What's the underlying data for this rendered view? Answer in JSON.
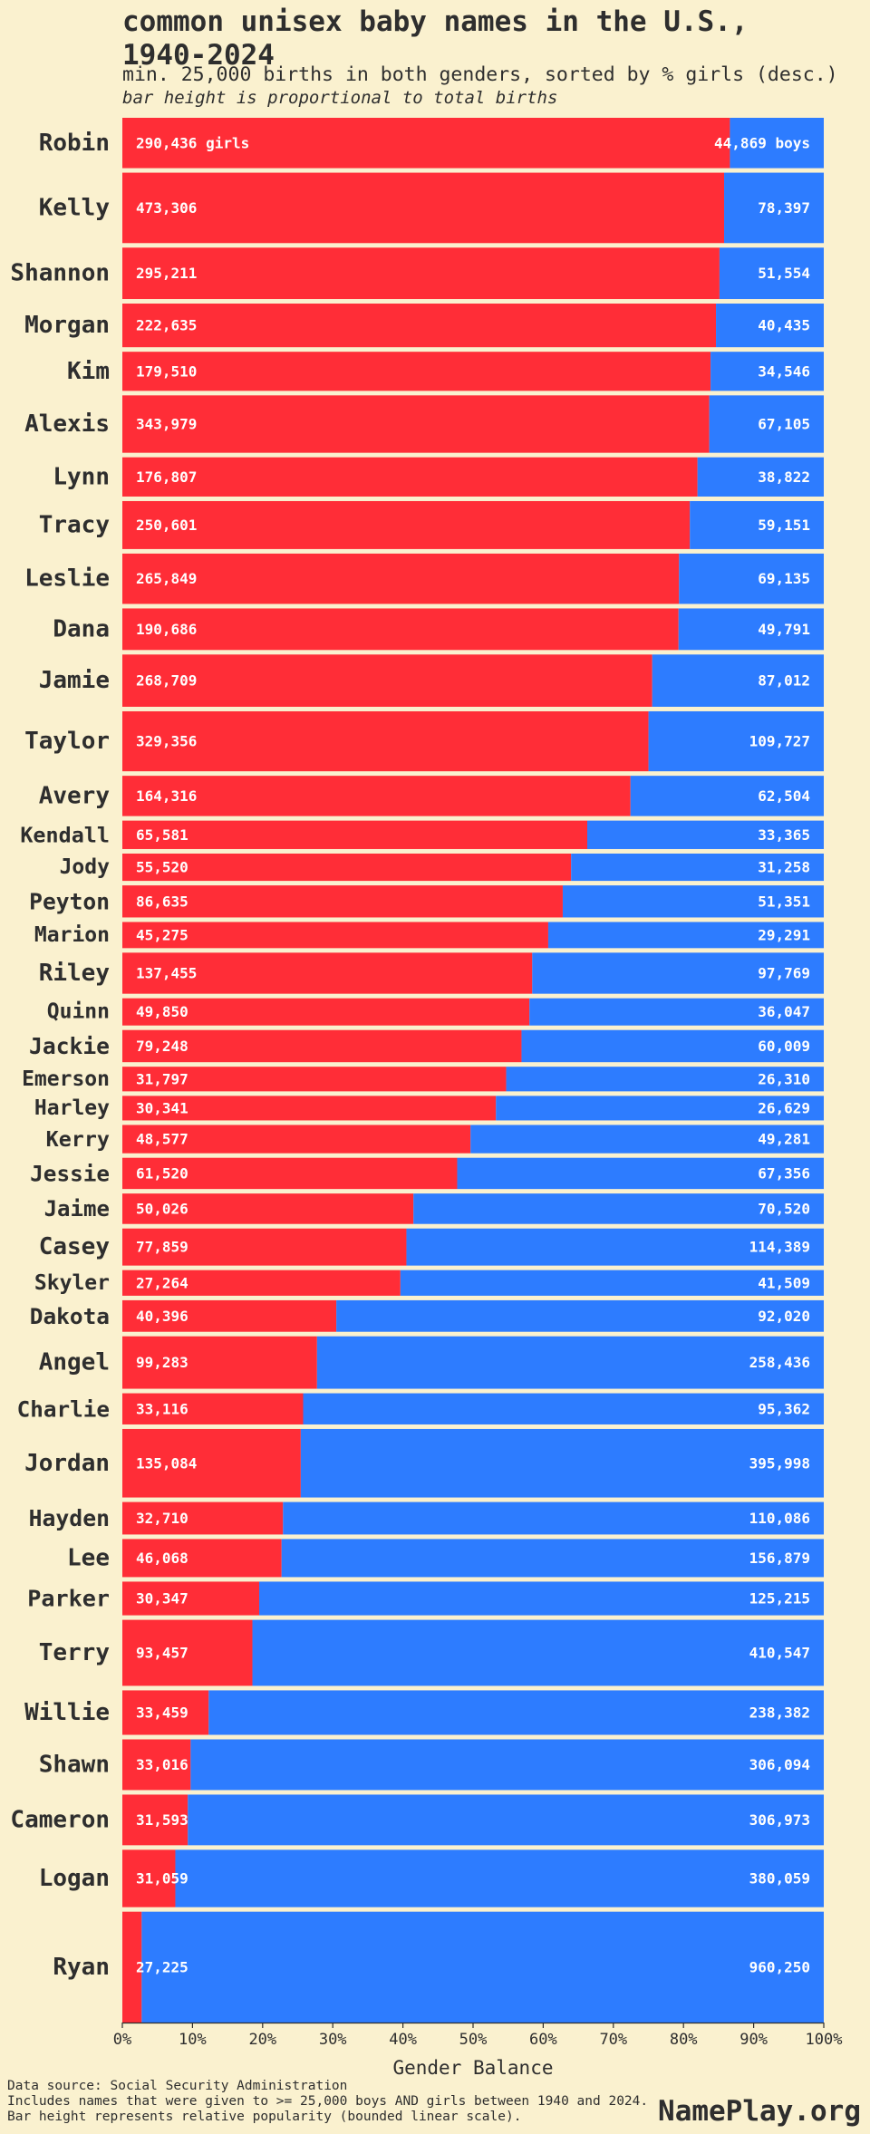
{
  "header": {
    "title_line1": "common unisex baby names in the U.S.,",
    "title_line2": "1940-2024",
    "subtitle": "min. 25,000 births in both genders, sorted by % girls (desc.)",
    "note": "bar height is proportional to total births"
  },
  "colors": {
    "girls": "#ff2d37",
    "boys": "#2d7cff",
    "background": "#faf1cf",
    "text": "#2e2e2e"
  },
  "footer": {
    "source": "Data source: Social Security Administration",
    "criteria": "Includes names that were given to >= 25,000 boys AND girls between 1940 and 2024.",
    "height_note": "Bar height represents relative popularity (bounded linear scale).",
    "brand": "NamePlay.org"
  },
  "chart_data": {
    "type": "bar",
    "orientation": "horizontal-stacked-100%",
    "xlabel": "Gender Balance",
    "xlim": [
      0,
      100
    ],
    "xticks": [
      "0%",
      "10%",
      "20%",
      "30%",
      "40%",
      "50%",
      "60%",
      "70%",
      "80%",
      "90%",
      "100%"
    ],
    "first_row_suffix_girls": " girls",
    "first_row_suffix_boys": " boys",
    "series": [
      {
        "name": "girls"
      },
      {
        "name": "boys"
      }
    ],
    "names": [
      {
        "name": "Robin",
        "girls": 290436,
        "boys": 44869
      },
      {
        "name": "Kelly",
        "girls": 473306,
        "boys": 78397
      },
      {
        "name": "Shannon",
        "girls": 295211,
        "boys": 51554
      },
      {
        "name": "Morgan",
        "girls": 222635,
        "boys": 40435
      },
      {
        "name": "Kim",
        "girls": 179510,
        "boys": 34546
      },
      {
        "name": "Alexis",
        "girls": 343979,
        "boys": 67105
      },
      {
        "name": "Lynn",
        "girls": 176807,
        "boys": 38822
      },
      {
        "name": "Tracy",
        "girls": 250601,
        "boys": 59151
      },
      {
        "name": "Leslie",
        "girls": 265849,
        "boys": 69135
      },
      {
        "name": "Dana",
        "girls": 190686,
        "boys": 49791
      },
      {
        "name": "Jamie",
        "girls": 268709,
        "boys": 87012
      },
      {
        "name": "Taylor",
        "girls": 329356,
        "boys": 109727
      },
      {
        "name": "Avery",
        "girls": 164316,
        "boys": 62504
      },
      {
        "name": "Kendall",
        "girls": 65581,
        "boys": 33365
      },
      {
        "name": "Jody",
        "girls": 55520,
        "boys": 31258
      },
      {
        "name": "Peyton",
        "girls": 86635,
        "boys": 51351
      },
      {
        "name": "Marion",
        "girls": 45275,
        "boys": 29291
      },
      {
        "name": "Riley",
        "girls": 137455,
        "boys": 97769
      },
      {
        "name": "Quinn",
        "girls": 49850,
        "boys": 36047
      },
      {
        "name": "Jackie",
        "girls": 79248,
        "boys": 60009
      },
      {
        "name": "Emerson",
        "girls": 31797,
        "boys": 26310
      },
      {
        "name": "Harley",
        "girls": 30341,
        "boys": 26629
      },
      {
        "name": "Kerry",
        "girls": 48577,
        "boys": 49281
      },
      {
        "name": "Jessie",
        "girls": 61520,
        "boys": 67356
      },
      {
        "name": "Jaime",
        "girls": 50026,
        "boys": 70520
      },
      {
        "name": "Casey",
        "girls": 77859,
        "boys": 114389
      },
      {
        "name": "Skyler",
        "girls": 27264,
        "boys": 41509
      },
      {
        "name": "Dakota",
        "girls": 40396,
        "boys": 92020
      },
      {
        "name": "Angel",
        "girls": 99283,
        "boys": 258436
      },
      {
        "name": "Charlie",
        "girls": 33116,
        "boys": 95362
      },
      {
        "name": "Jordan",
        "girls": 135084,
        "boys": 395998
      },
      {
        "name": "Hayden",
        "girls": 32710,
        "boys": 110086
      },
      {
        "name": "Lee",
        "girls": 46068,
        "boys": 156879
      },
      {
        "name": "Parker",
        "girls": 30347,
        "boys": 125215
      },
      {
        "name": "Terry",
        "girls": 93457,
        "boys": 410547
      },
      {
        "name": "Willie",
        "girls": 33459,
        "boys": 238382
      },
      {
        "name": "Shawn",
        "girls": 33016,
        "boys": 306094
      },
      {
        "name": "Cameron",
        "girls": 31593,
        "boys": 306973
      },
      {
        "name": "Logan",
        "girls": 31059,
        "boys": 380059
      },
      {
        "name": "Ryan",
        "girls": 27225,
        "boys": 960250
      }
    ]
  }
}
